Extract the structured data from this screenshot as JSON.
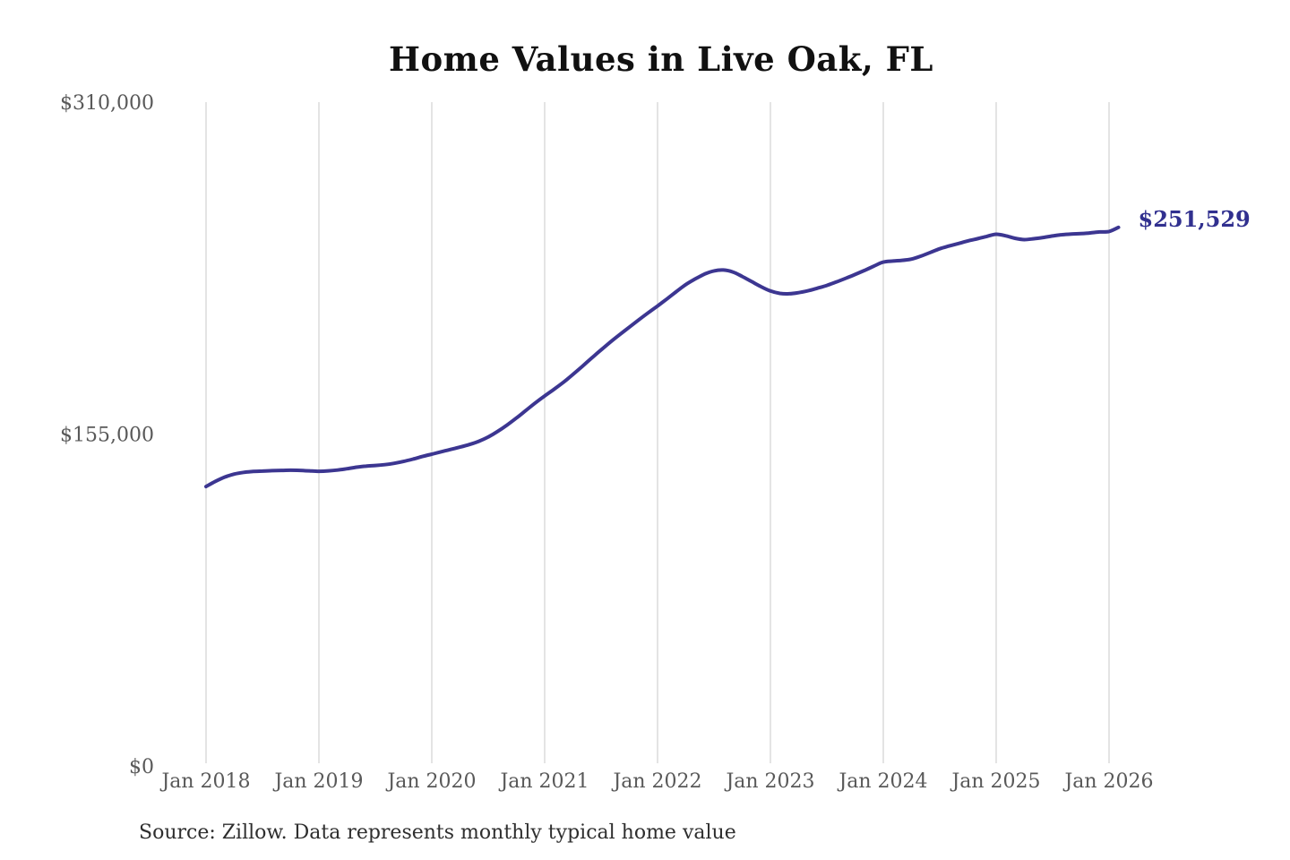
{
  "page": {
    "background": "#ffffff"
  },
  "chart_data": {
    "type": "line",
    "title": "Home Values in Live Oak, FL",
    "xlabel": "",
    "ylabel": "",
    "ylim": [
      0,
      310000
    ],
    "grid": "vertical-only",
    "legend": "none",
    "months": [
      "2018-01",
      "2018-02",
      "2018-03",
      "2018-04",
      "2018-05",
      "2018-06",
      "2018-07",
      "2018-08",
      "2018-09",
      "2018-10",
      "2018-11",
      "2018-12",
      "2019-01",
      "2019-02",
      "2019-03",
      "2019-04",
      "2019-05",
      "2019-06",
      "2019-07",
      "2019-08",
      "2019-09",
      "2019-10",
      "2019-11",
      "2019-12",
      "2020-01",
      "2020-02",
      "2020-03",
      "2020-04",
      "2020-05",
      "2020-06",
      "2020-07",
      "2020-08",
      "2020-09",
      "2020-10",
      "2020-11",
      "2020-12",
      "2021-01",
      "2021-02",
      "2021-03",
      "2021-04",
      "2021-05",
      "2021-06",
      "2021-07",
      "2021-08",
      "2021-09",
      "2021-10",
      "2021-11",
      "2021-12",
      "2022-01",
      "2022-02",
      "2022-03",
      "2022-04",
      "2022-05",
      "2022-06",
      "2022-07",
      "2022-08",
      "2022-09",
      "2022-10",
      "2022-11",
      "2022-12",
      "2023-01",
      "2023-02",
      "2023-03",
      "2023-04",
      "2023-05",
      "2023-06",
      "2023-07",
      "2023-08",
      "2023-09",
      "2023-10",
      "2023-11",
      "2023-12",
      "2024-01",
      "2024-02",
      "2024-03",
      "2024-04",
      "2024-05",
      "2024-06",
      "2024-07",
      "2024-08",
      "2024-09",
      "2024-10",
      "2024-11",
      "2024-12",
      "2025-01",
      "2025-02",
      "2025-03",
      "2025-04",
      "2025-05",
      "2025-06",
      "2025-07",
      "2025-08",
      "2025-09",
      "2025-10",
      "2025-11",
      "2025-12",
      "2026-01",
      "2026-02"
    ],
    "series": [
      {
        "name": "Monthly typical home value",
        "color": "#3c3691",
        "values": [
          130500,
          132900,
          134900,
          136300,
          137100,
          137500,
          137700,
          137900,
          138000,
          138100,
          138000,
          137800,
          137600,
          137800,
          138200,
          138800,
          139500,
          140000,
          140300,
          140700,
          141300,
          142200,
          143300,
          144500,
          145600,
          146700,
          147800,
          148900,
          150100,
          151600,
          153600,
          156200,
          159200,
          162500,
          166000,
          169500,
          172800,
          175900,
          179200,
          182800,
          186600,
          190500,
          194300,
          198000,
          201500,
          204900,
          208300,
          211600,
          214800,
          218100,
          221500,
          224800,
          227400,
          229700,
          231200,
          231600,
          230700,
          228600,
          226200,
          223800,
          221800,
          220700,
          220500,
          221000,
          221900,
          223100,
          224400,
          226000,
          227700,
          229500,
          231400,
          233400,
          235300,
          235800,
          236100,
          236700,
          238100,
          239800,
          241500,
          242800,
          244000,
          245200,
          246200,
          247300,
          248300,
          247600,
          246400,
          245800,
          246200,
          246800,
          247500,
          248100,
          248400,
          248600,
          248900,
          249400,
          249600,
          251529
        ]
      }
    ],
    "x_tick_month_indexes": [
      0,
      12,
      24,
      36,
      48,
      60,
      72,
      84,
      96
    ],
    "x_tick_labels": [
      "Jan 2018",
      "Jan 2019",
      "Jan 2020",
      "Jan 2021",
      "Jan 2022",
      "Jan 2023",
      "Jan 2024",
      "Jan 2025",
      "Jan 2026"
    ],
    "y_ticks": [
      {
        "value": 0,
        "label": "$0"
      },
      {
        "value": 155000,
        "label": "$155,000"
      },
      {
        "value": 310000,
        "label": "$310,000"
      }
    ],
    "end_label": {
      "text": "$251,529",
      "value": 251529,
      "color": "#31308f"
    }
  },
  "source_note": "Source: Zillow. Data represents monthly typical home value",
  "colors": {
    "line": "#3c3691",
    "end_label": "#31308f",
    "gridline": "#c9c9c9",
    "tick_text": "#595959",
    "title_text": "#111111",
    "source_text": "#2e2e2e"
  }
}
